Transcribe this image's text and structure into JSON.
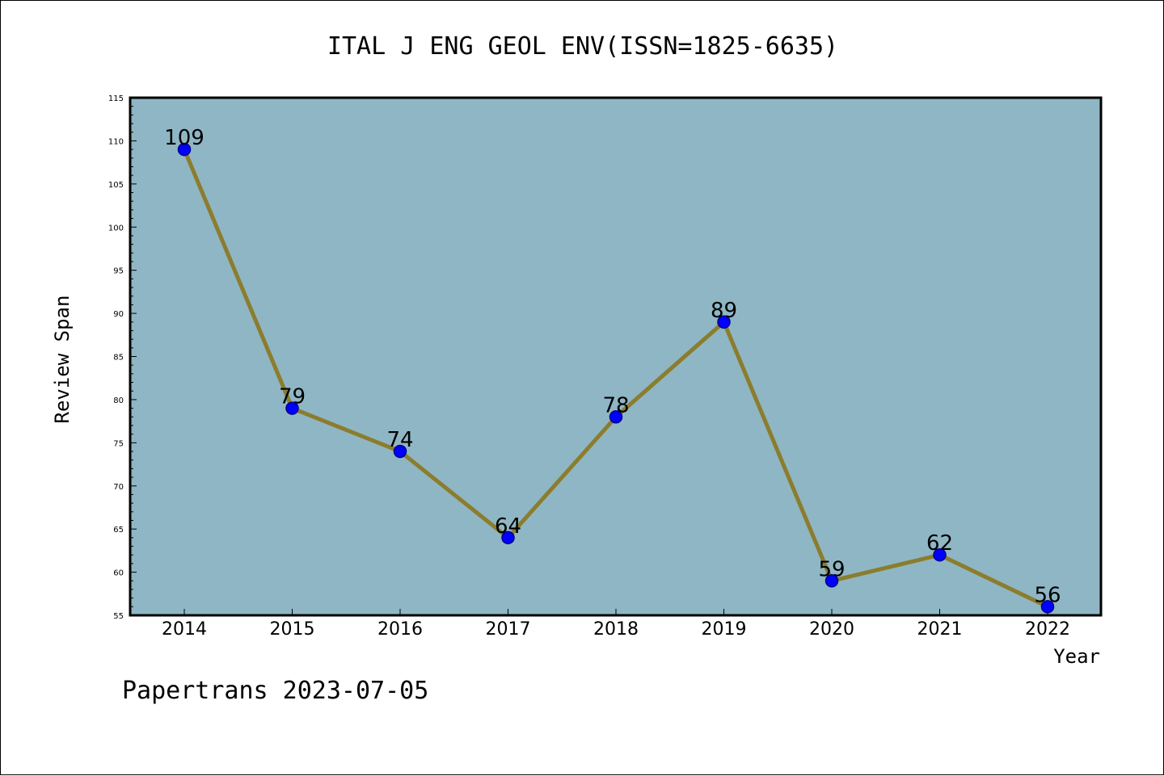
{
  "chart_data": {
    "type": "line",
    "title": "ITAL J ENG GEOL ENV(ISSN=1825-6635)",
    "xlabel": "Year",
    "ylabel": "Review Span",
    "categories": [
      "2014",
      "2015",
      "2016",
      "2017",
      "2018",
      "2019",
      "2020",
      "2021",
      "2022"
    ],
    "series": [
      {
        "values": [
          109,
          79,
          74,
          64,
          78,
          89,
          59,
          62,
          56
        ]
      }
    ],
    "ylim": [
      55,
      115
    ],
    "yticks": [
      55,
      60,
      65,
      70,
      75,
      80,
      85,
      90,
      95,
      100,
      105,
      110,
      115
    ],
    "grid": false,
    "legend": "none",
    "colors": {
      "plot_background": "#8fb6c4",
      "line": "#8b7d2e",
      "marker_fill": "#0000ff",
      "marker_stroke": "#00008b"
    }
  },
  "footer": {
    "text": "Papertrans 2023-07-05"
  }
}
